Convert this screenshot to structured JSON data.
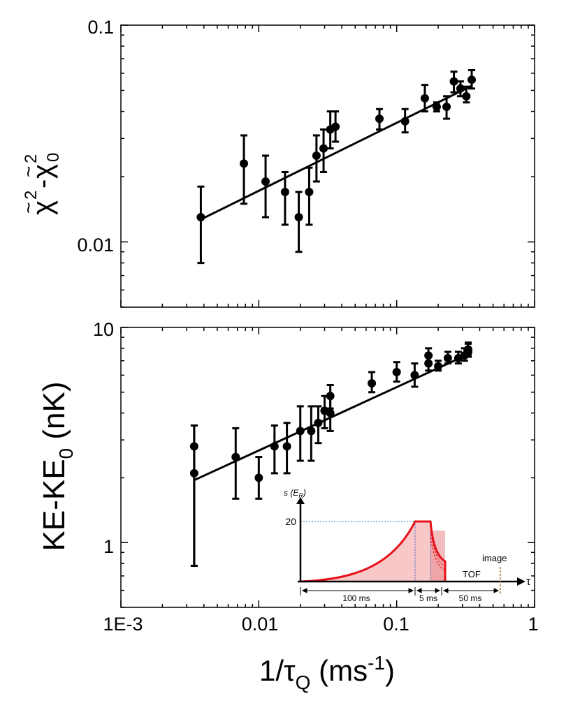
{
  "chart_data": [
    {
      "type": "scatter",
      "panel": "top",
      "xscale": "log",
      "yscale": "log",
      "xlim": [
        0.001,
        1
      ],
      "ylim": [
        0.005,
        0.1
      ],
      "ylabel_parts": {
        "chi": "χ",
        "tilde": "~",
        "sup": "2",
        "dash": "-",
        "sub": "0"
      },
      "ytick_labels": [
        "0.1",
        "0.01"
      ],
      "ytick_values": [
        0.1,
        0.01
      ],
      "series": [
        {
          "name": "data",
          "x": [
            0.0038,
            0.0078,
            0.0112,
            0.0155,
            0.0195,
            0.0232,
            0.0262,
            0.0295,
            0.033,
            0.036,
            0.075,
            0.115,
            0.16,
            0.195,
            0.23,
            0.26,
            0.29,
            0.32,
            0.35
          ],
          "y": [
            0.013,
            0.023,
            0.019,
            0.017,
            0.013,
            0.017,
            0.025,
            0.027,
            0.033,
            0.034,
            0.037,
            0.036,
            0.046,
            0.042,
            0.042,
            0.055,
            0.051,
            0.047,
            0.056
          ],
          "yerr_low": [
            0.008,
            0.015,
            0.013,
            0.012,
            0.009,
            0.012,
            0.019,
            0.021,
            0.027,
            0.029,
            0.033,
            0.032,
            0.04,
            0.04,
            0.037,
            0.049,
            0.047,
            0.044,
            0.051
          ],
          "yerr_high": [
            0.018,
            0.031,
            0.025,
            0.021,
            0.017,
            0.022,
            0.031,
            0.033,
            0.04,
            0.04,
            0.041,
            0.041,
            0.053,
            0.044,
            0.047,
            0.061,
            0.055,
            0.052,
            0.062
          ]
        },
        {
          "name": "fit",
          "type": "line",
          "x": [
            0.0038,
            0.35
          ],
          "y": [
            0.0127,
            0.0525
          ]
        }
      ]
    },
    {
      "type": "scatter",
      "panel": "bottom",
      "xscale": "log",
      "yscale": "log",
      "xlim": [
        0.001,
        1
      ],
      "ylim": [
        0.5,
        10
      ],
      "ylabel_parts": {
        "main": "KE-KE",
        "sub": "0",
        "unit": " (nK)"
      },
      "ytick_labels": [
        "10",
        "1"
      ],
      "ytick_values": [
        10,
        1
      ],
      "xtick_labels": [
        "1E-3",
        "0.01",
        "0.1",
        "1"
      ],
      "xtick_values": [
        0.001,
        0.01,
        0.1,
        1
      ],
      "xlabel_parts": {
        "pre": "1/",
        "tau": "τ",
        "sub": "Q",
        "mid": " (ms",
        "sup": "-1",
        "post": ")"
      },
      "series": [
        {
          "name": "data",
          "x": [
            0.0034,
            0.0034,
            0.0068,
            0.01,
            0.013,
            0.016,
            0.02,
            0.024,
            0.027,
            0.03,
            0.033,
            0.033,
            0.066,
            0.1,
            0.135,
            0.17,
            0.17,
            0.2,
            0.235,
            0.28,
            0.31,
            0.33,
            0.33
          ],
          "y": [
            2.8,
            2.1,
            2.5,
            2.0,
            2.8,
            2.8,
            3.3,
            3.3,
            3.6,
            4.1,
            4.8,
            4.0,
            5.5,
            6.2,
            6.0,
            7.4,
            6.8,
            6.6,
            7.2,
            7.2,
            7.4,
            7.7,
            7.9
          ],
          "yerr_low": [
            0.78,
            0.78,
            1.6,
            1.6,
            2.1,
            2.1,
            2.4,
            2.4,
            2.9,
            3.4,
            4.2,
            3.3,
            5.0,
            5.6,
            5.3,
            6.9,
            6.3,
            6.3,
            6.8,
            6.8,
            7.0,
            7.3,
            7.4
          ],
          "yerr_high": [
            3.5,
            3.5,
            3.4,
            2.5,
            3.5,
            3.6,
            4.3,
            4.3,
            4.3,
            4.8,
            5.4,
            4.8,
            6.2,
            6.9,
            6.8,
            8.0,
            7.5,
            7.0,
            7.7,
            7.7,
            8.0,
            8.4,
            8.5
          ]
        },
        {
          "name": "fit",
          "type": "line",
          "x": [
            0.0034,
            0.33
          ],
          "y": [
            1.95,
            7.5
          ]
        }
      ]
    }
  ],
  "inset": {
    "ylabel_main": "s (E",
    "ylabel_sub": "R",
    "ylabel_end": ")",
    "level_label": "20",
    "tau_label": "τ",
    "tof_label": "TOF",
    "image_label": "image",
    "intervals": [
      "100 ms",
      "5 ms",
      "50 ms"
    ],
    "fill_color": "#f8c8c8",
    "line_color": "#e8101a",
    "guide_color": "#3a78d8",
    "marker_color": "#b06a2a"
  }
}
